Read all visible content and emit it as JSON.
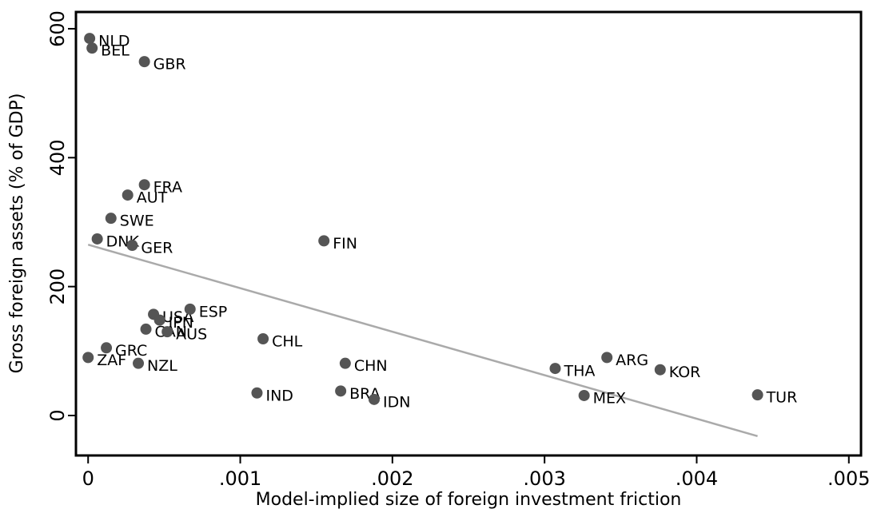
{
  "chart_data": {
    "type": "scatter",
    "xlabel": "Model-implied size of foreign investment friction",
    "ylabel": "Gross foreign assets (% of GDP)",
    "labels": [
      "NLD",
      "BEL",
      "GBR",
      "FRA",
      "AUT",
      "SWE",
      "DNK",
      "GER",
      "FIN",
      "USA",
      "JPN",
      "ESP",
      "CAN",
      "AUS",
      "CHL",
      "GRC",
      "ZAF",
      "NZL",
      "CHN",
      "IND",
      "BRA",
      "IDN",
      "THA",
      "ARG",
      "KOR",
      "MEX",
      "TUR"
    ],
    "x": [
      1e-05,
      2.6e-05,
      0.00037,
      0.00037,
      0.00026,
      0.00015,
      6e-05,
      0.00029,
      0.00155,
      0.00043,
      0.00047,
      0.00067,
      0.00038,
      0.00052,
      0.00115,
      0.00012,
      0.0,
      0.00033,
      0.00169,
      0.00111,
      0.00166,
      0.00188,
      0.00307,
      0.00341,
      0.00376,
      0.00326,
      0.0044
    ],
    "values": [
      585,
      570,
      549,
      358,
      342,
      306,
      274,
      264,
      271,
      157,
      148,
      165,
      134,
      130,
      119,
      105,
      90,
      81,
      81,
      35,
      38,
      25,
      73,
      90,
      71,
      31,
      32
    ],
    "color": "#555555",
    "fit": {
      "x": [
        0,
        0.0044
      ],
      "values": [
        265,
        -32
      ],
      "color": "#aaaaaa"
    },
    "xlim": [
      -8e-05,
      0.00508
    ],
    "ylim": [
      -62,
      626
    ],
    "xticks": [
      {
        "value": 0,
        "label": "0"
      },
      {
        "value": 0.001,
        "label": ".001"
      },
      {
        "value": 0.002,
        "label": ".002"
      },
      {
        "value": 0.003,
        "label": ".003"
      },
      {
        "value": 0.004,
        "label": ".004"
      },
      {
        "value": 0.005,
        "label": ".005"
      }
    ],
    "yticks": [
      0,
      200,
      400,
      600
    ],
    "grid": false
  }
}
